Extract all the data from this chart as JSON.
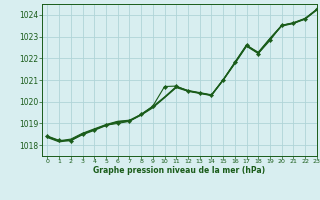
{
  "title": "Graphe pression niveau de la mer (hPa)",
  "bg_color": "#d8eef0",
  "grid_color": "#b0d4d8",
  "line_color": "#1a5c1a",
  "xlim": [
    -0.5,
    23
  ],
  "ylim": [
    1017.5,
    1024.5
  ],
  "yticks": [
    1018,
    1019,
    1020,
    1021,
    1022,
    1023,
    1024
  ],
  "xticks": [
    0,
    1,
    2,
    3,
    4,
    5,
    6,
    7,
    8,
    9,
    10,
    11,
    12,
    13,
    14,
    15,
    16,
    17,
    18,
    19,
    20,
    21,
    22,
    23
  ],
  "x": [
    0,
    1,
    2,
    3,
    4,
    5,
    6,
    7,
    8,
    9,
    10,
    11,
    12,
    13,
    14,
    15,
    16,
    17,
    18,
    19,
    20,
    21,
    22,
    23
  ],
  "line_smooth1": [
    1018.35,
    1018.15,
    1018.22,
    1018.48,
    1018.68,
    1018.9,
    1019.05,
    1019.1,
    1019.38,
    1019.72,
    1020.18,
    1020.65,
    1020.48,
    1020.38,
    1020.28,
    1020.98,
    1021.75,
    1022.55,
    1022.22,
    1022.88,
    1023.48,
    1023.6,
    1023.8,
    1024.22
  ],
  "line_smooth2": [
    1018.38,
    1018.18,
    1018.25,
    1018.52,
    1018.72,
    1018.92,
    1019.08,
    1019.12,
    1019.4,
    1019.75,
    1020.2,
    1020.68,
    1020.5,
    1020.4,
    1020.3,
    1021.0,
    1021.78,
    1022.58,
    1022.25,
    1022.9,
    1023.5,
    1023.62,
    1023.82,
    1024.24
  ],
  "line_smooth3": [
    1018.4,
    1018.2,
    1018.28,
    1018.55,
    1018.75,
    1018.95,
    1019.1,
    1019.15,
    1019.42,
    1019.78,
    1020.22,
    1020.7,
    1020.52,
    1020.42,
    1020.32,
    1021.02,
    1021.8,
    1022.6,
    1022.28,
    1022.92,
    1023.52,
    1023.64,
    1023.84,
    1024.26
  ],
  "line_marker": [
    1018.42,
    1018.22,
    1018.2,
    1018.5,
    1018.72,
    1018.92,
    1019.0,
    1019.1,
    1019.42,
    1019.8,
    1020.7,
    1020.72,
    1020.5,
    1020.4,
    1020.3,
    1021.0,
    1021.82,
    1022.62,
    1022.22,
    1022.82,
    1023.52,
    1023.62,
    1023.82,
    1024.25
  ]
}
